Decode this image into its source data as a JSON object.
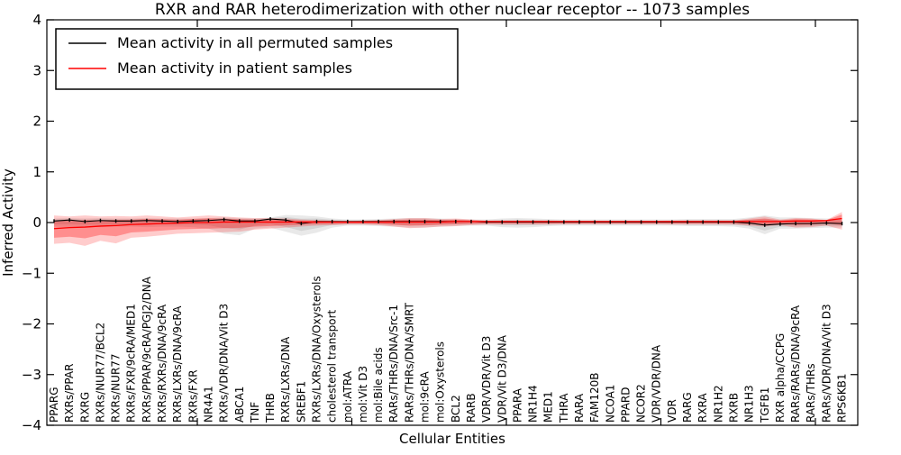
{
  "figure": {
    "title": "RXR and RAR heterodimerization with other nuclear receptor -- 1073 samples",
    "xlabel": "Cellular Entities",
    "ylabel": "Inferred Activity"
  },
  "legend": {
    "entries": [
      {
        "label": "Mean activity in all permuted samples",
        "color": "#000000"
      },
      {
        "label": "Mean activity in patient samples",
        "color": "#ff0000"
      }
    ]
  },
  "chart_data": {
    "type": "line",
    "title": "RXR and RAR heterodimerization with other nuclear receptor -- 1073 samples",
    "xlabel": "Cellular Entities",
    "ylabel": "Inferred Activity",
    "ylim": [
      -4,
      4
    ],
    "yticks": [
      4,
      3,
      2,
      1,
      0,
      -1,
      -2,
      -3,
      -4
    ],
    "ytick_labels": [
      "4",
      "3",
      "2",
      "1",
      "0",
      "−1",
      "−2",
      "−3",
      "−4"
    ],
    "grid": false,
    "legend_position": "upper left",
    "band_inner_scale": 0.6,
    "categories": [
      "PPARG",
      "RXRs/PPAR",
      "RXRG",
      "RXRs/NUR77/BCL2",
      "RXRs/NUR77",
      "RXRs/FXR/9cRA/MED1",
      "RXRs/PPAR/9cRA/PGJ2/DNA",
      "RXRs/RXRs/DNA/9cRA",
      "RXRs/LXRs/DNA/9cRA",
      "RXRs/FXR",
      "NR4A1",
      "RXRs/VDR/DNA/Vit D3",
      "ABCA1",
      "TNF",
      "THRB",
      "RXRs/LXRs/DNA",
      "SREBF1",
      "RXRs/LXRs/DNA/Oxysterols",
      "cholesterol transport",
      "mol:ATRA",
      "mol:Vit D3",
      "mol:Bile acids",
      "RARs/THRs/DNA/Src-1",
      "RARs/THRs/DNA/SMRT",
      "mol:9cRA",
      "mol:Oxysterols",
      "BCL2",
      "RARB",
      "VDR/VDR/Vit D3",
      "VDR/Vit D3/DNA",
      "PPARA",
      "NR1H4",
      "MED1",
      "THRA",
      "RARA",
      "FAM120B",
      "NCOA1",
      "PPARD",
      "NCOR2",
      "VDR/VDR/DNA",
      "VDR",
      "RARG",
      "RXRA",
      "NR1H2",
      "RXRB",
      "NR1H3",
      "TGFB1",
      "RXR alpha/CCPG",
      "RARs/RARs/DNA/9cRA",
      "RARs/THRs",
      "RARs/VDR/DNA/Vit D3",
      "RPS6KB1"
    ],
    "series": [
      {
        "name": "Mean activity in all permuted samples",
        "color": "#000000",
        "band_color": "#999999",
        "band_alpha_outer": 0.22,
        "band_alpha_inner": 0.25,
        "values": [
          0.03,
          0.05,
          0.02,
          0.04,
          0.03,
          0.03,
          0.04,
          0.03,
          0.02,
          0.03,
          0.04,
          0.06,
          0.03,
          0.03,
          0.07,
          0.05,
          -0.02,
          0.02,
          0.02,
          0.02,
          0.02,
          0.02,
          0.02,
          0.02,
          0.02,
          0.02,
          0.02,
          0.02,
          0.01,
          0.01,
          0.01,
          0.01,
          0.01,
          0.01,
          0.01,
          0.01,
          0.01,
          0.01,
          0.01,
          0.01,
          0.01,
          0.01,
          0.01,
          0.01,
          0.01,
          -0.01,
          -0.05,
          -0.03,
          -0.02,
          -0.02,
          -0.01,
          -0.02
        ],
        "band_upper": [
          0.08,
          0.09,
          0.08,
          0.09,
          0.08,
          0.08,
          0.09,
          0.08,
          0.08,
          0.08,
          0.09,
          0.1,
          0.09,
          0.08,
          0.1,
          0.15,
          0.14,
          0.12,
          0.08,
          0.06,
          0.06,
          0.07,
          0.08,
          0.09,
          0.09,
          0.08,
          0.07,
          0.06,
          0.06,
          0.08,
          0.09,
          0.08,
          0.07,
          0.06,
          0.06,
          0.06,
          0.06,
          0.06,
          0.06,
          0.06,
          0.06,
          0.07,
          0.07,
          0.07,
          0.07,
          0.1,
          0.14,
          0.1,
          0.1,
          0.09,
          0.08,
          0.08
        ],
        "band_lower": [
          -0.08,
          -0.09,
          -0.08,
          -0.09,
          -0.08,
          -0.08,
          -0.09,
          -0.08,
          -0.08,
          -0.09,
          -0.12,
          -0.22,
          -0.25,
          -0.12,
          -0.1,
          -0.18,
          -0.26,
          -0.2,
          -0.1,
          -0.06,
          -0.06,
          -0.07,
          -0.08,
          -0.1,
          -0.1,
          -0.08,
          -0.07,
          -0.06,
          -0.06,
          -0.09,
          -0.1,
          -0.09,
          -0.07,
          -0.06,
          -0.06,
          -0.06,
          -0.06,
          -0.06,
          -0.06,
          -0.06,
          -0.06,
          -0.07,
          -0.07,
          -0.07,
          -0.08,
          -0.12,
          -0.23,
          -0.12,
          -0.12,
          -0.11,
          -0.1,
          -0.1
        ]
      },
      {
        "name": "Mean activity in patient samples",
        "color": "#ff0000",
        "band_color": "#ff0000",
        "band_alpha_outer": 0.2,
        "band_alpha_inner": 0.3,
        "values": [
          -0.12,
          -0.1,
          -0.09,
          -0.07,
          -0.06,
          -0.04,
          -0.03,
          -0.02,
          -0.01,
          0,
          0,
          0.01,
          0.01,
          0.01,
          0.01,
          0.01,
          0.01,
          0.01,
          0.01,
          0.01,
          0.01,
          0.01,
          0.01,
          0.01,
          0.01,
          0.01,
          0.02,
          0.02,
          0.02,
          0.02,
          0.02,
          0.02,
          0.02,
          0.02,
          0.02,
          0.02,
          0.02,
          0.02,
          0.02,
          0.02,
          0.02,
          0.02,
          0.02,
          0.02,
          0.02,
          0.02,
          0.02,
          0.02,
          0.03,
          0.03,
          0.04,
          0.08
        ],
        "band_upper": [
          0.14,
          0.12,
          0.14,
          0.12,
          0.13,
          0.12,
          0.14,
          0.12,
          0.1,
          0.12,
          0.14,
          0.12,
          0.1,
          0.09,
          0.09,
          0.08,
          0.06,
          0.05,
          0.04,
          0.03,
          0.04,
          0.05,
          0.07,
          0.09,
          0.09,
          0.07,
          0.08,
          0.06,
          0.04,
          0.04,
          0.04,
          0.04,
          0.04,
          0.035,
          0.035,
          0.035,
          0.035,
          0.035,
          0.035,
          0.035,
          0.04,
          0.04,
          0.04,
          0.04,
          0.04,
          0.08,
          0.12,
          0.06,
          0.09,
          0.08,
          0.05,
          0.21
        ],
        "band_lower": [
          -0.42,
          -0.4,
          -0.46,
          -0.36,
          -0.41,
          -0.3,
          -0.28,
          -0.25,
          -0.22,
          -0.21,
          -0.2,
          -0.19,
          -0.18,
          -0.14,
          -0.12,
          -0.1,
          -0.08,
          -0.06,
          -0.05,
          -0.04,
          -0.04,
          -0.05,
          -0.08,
          -0.11,
          -0.1,
          -0.08,
          -0.07,
          -0.05,
          -0.04,
          -0.04,
          -0.04,
          -0.04,
          -0.04,
          -0.035,
          -0.035,
          -0.035,
          -0.035,
          -0.035,
          -0.035,
          -0.035,
          -0.04,
          -0.04,
          -0.04,
          -0.04,
          -0.04,
          -0.06,
          -0.08,
          -0.05,
          -0.1,
          -0.09,
          -0.06,
          -0.14
        ]
      }
    ]
  }
}
